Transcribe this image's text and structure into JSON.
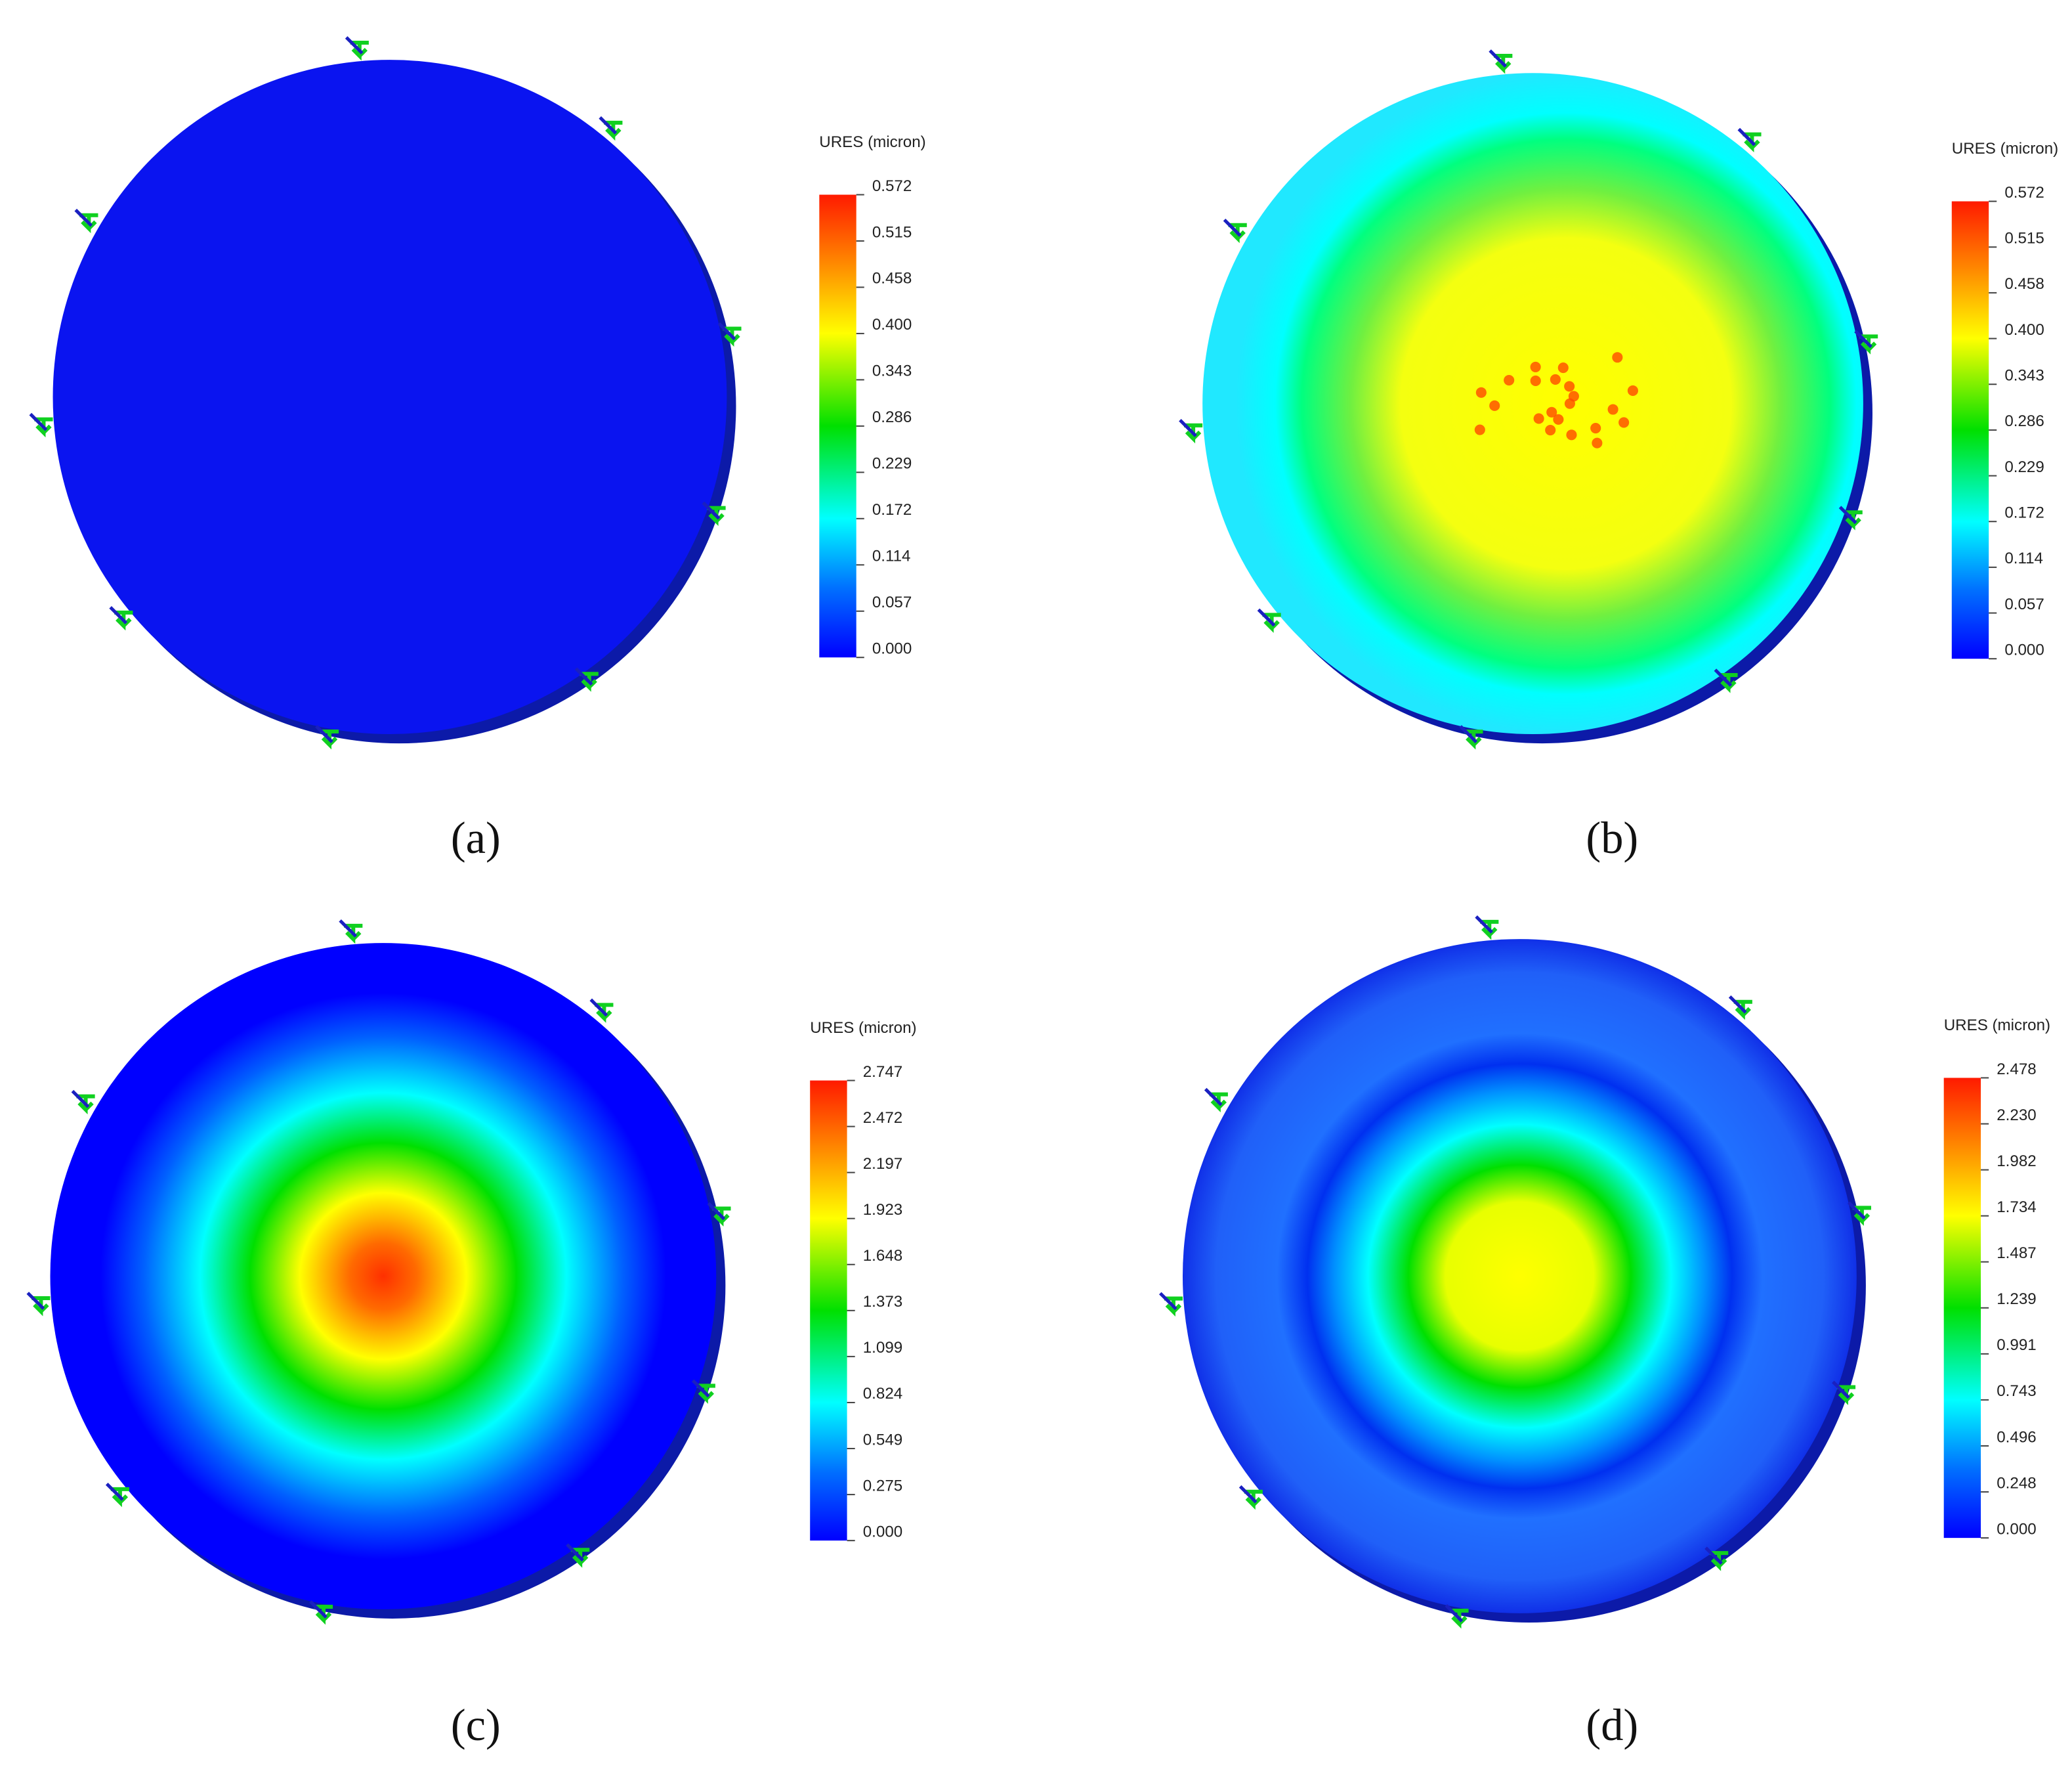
{
  "panels": [
    {
      "label": "(a)",
      "legend_title": "URES (micron)",
      "ticks": [
        "0.572",
        "0.515",
        "0.458",
        "0.400",
        "0.343",
        "0.286",
        "0.229",
        "0.172",
        "0.114",
        "0.057",
        "0.000"
      ]
    },
    {
      "label": "(b)",
      "legend_title": "URES (micron)",
      "ticks": [
        "0.572",
        "0.515",
        "0.458",
        "0.400",
        "0.343",
        "0.286",
        "0.229",
        "0.172",
        "0.114",
        "0.057",
        "0.000"
      ]
    },
    {
      "label": "(c)",
      "legend_title": "URES (micron)",
      "ticks": [
        "2.747",
        "2.472",
        "2.197",
        "1.923",
        "1.648",
        "1.373",
        "1.099",
        "0.824",
        "0.549",
        "0.275",
        "0.000"
      ]
    },
    {
      "label": "(d)",
      "legend_title": "URES (micron)",
      "ticks": [
        "2.478",
        "2.230",
        "1.982",
        "1.734",
        "1.487",
        "1.239",
        "0.991",
        "0.743",
        "0.496",
        "0.248",
        "0.000"
      ]
    }
  ]
}
